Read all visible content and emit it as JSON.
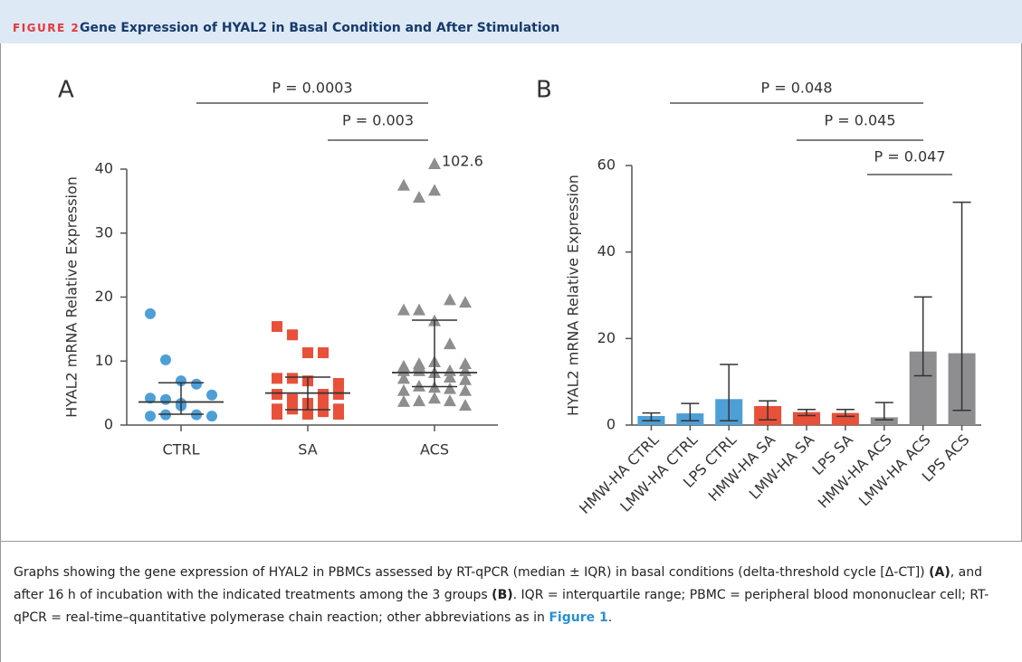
{
  "header": {
    "figure": "FIGURE 2",
    "title": "Gene Expression of HYAL2 in Basal Condition and After Stimulation"
  },
  "chart_data": [
    {
      "type": "scatter",
      "panel": "A",
      "y_label": "HYAL2 mRNA Relative Expression",
      "categories": [
        "CTRL",
        "SA",
        "ACS"
      ],
      "ylim": [
        0,
        40
      ],
      "yticks": [
        0,
        10,
        20,
        30,
        40
      ],
      "annotations": [
        "P = 0.0003",
        "P = 0.003"
      ],
      "series": [
        {
          "name": "CTRL",
          "color": "#4e9fd6",
          "marker": "circle",
          "values": [
            17.4,
            10.2,
            6.9,
            6.4,
            4.7,
            4.2,
            4.0,
            3.0,
            1.6,
            1.4,
            1.4,
            1.6,
            3.4
          ],
          "median": 3.6,
          "q1": 1.7,
          "q3": 6.6
        },
        {
          "name": "SA",
          "color": "#e8503a",
          "marker": "square",
          "values": [
            15.4,
            14.1,
            11.3,
            11.3,
            6.5,
            7.3,
            7.3,
            6.9,
            4.8,
            4.8,
            4.8,
            4.0,
            3.4,
            3.4,
            2.5,
            2.5,
            2.5,
            1.7,
            2.1,
            1.7,
            1.7
          ],
          "median": 5.0,
          "q1": 2.4,
          "q3": 7.5
        },
        {
          "name": "ACS",
          "color": "#8e8e90",
          "marker": "triangle",
          "values": [
            37.5,
            35.6,
            36.7,
            19.6,
            19.2,
            18.0,
            18.0,
            16.3,
            12.7,
            9.6,
            9.2,
            9.6,
            9.9,
            8.5,
            8.5,
            8.5,
            8.5,
            8.2,
            7.5,
            7.1,
            7.3,
            6.1,
            5.9,
            5.7,
            5.4,
            3.7,
            3.8,
            4.2,
            3.8,
            3.1,
            5.4,
            9.2
          ],
          "outliers": [
            102.6
          ],
          "median": 8.2,
          "q1": 6.0,
          "q3": 16.4
        }
      ]
    },
    {
      "type": "bar",
      "panel": "B",
      "y_label": "HYAL2 mRNA Relative Expression",
      "categories": [
        "HMW-HA CTRL",
        "LMW-HA CTRL",
        "LPS CTRL",
        "HMW-HA SA",
        "LMW-HA SA",
        "LPS SA",
        "HMW-HA ACS",
        "LMW-HA ACS",
        "LPS ACS"
      ],
      "values": [
        2.1,
        2.7,
        6.0,
        4.4,
        3.0,
        2.8,
        1.8,
        17.0,
        16.6
      ],
      "err_low": [
        1.0,
        1.0,
        1.0,
        1.2,
        2.2,
        2.0,
        1.2,
        11.4,
        3.4
      ],
      "err_high": [
        2.8,
        5.0,
        14.0,
        5.6,
        3.6,
        3.6,
        5.2,
        29.6,
        51.5
      ],
      "colors": [
        "#4e9fd6",
        "#4e9fd6",
        "#4e9fd6",
        "#e8503a",
        "#e8503a",
        "#e8503a",
        "#8e8e90",
        "#8e8e90",
        "#8e8e90"
      ],
      "ylim": [
        0,
        60
      ],
      "yticks": [
        0,
        20,
        40,
        60
      ],
      "annotations": [
        "P = 0.048",
        "P = 0.045",
        "P = 0.047"
      ]
    }
  ],
  "caption": [
    "Graphs showing the gene expression of HYAL2 in PBMCs assessed by RT-qPCR (median ± IQR) in basal conditions (delta-threshold cycle [Δ-CT]) ",
    "(A)",
    ", and after 16 h of incubation with the indicated treatments among the 3 groups ",
    "(B)",
    ". IQR = interquartile range; PBMC = peripheral blood mononuclear cell; RT-qPCR = real-time–quantitative polymerase chain reaction; other abbreviations as in ",
    "Figure 1",
    "."
  ]
}
